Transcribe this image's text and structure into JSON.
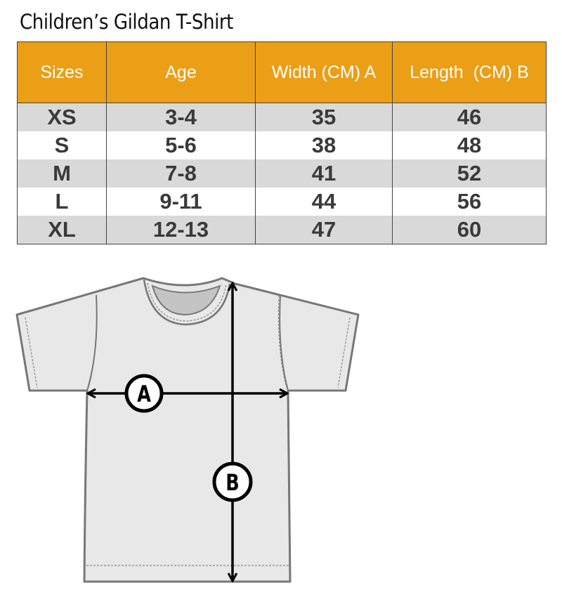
{
  "title": "Children’s Gildan T-Shirt",
  "table": {
    "headers": [
      "Sizes",
      "Age",
      "Width (CM) A",
      "Length  (CM) B"
    ],
    "rows": [
      [
        "XS",
        "3-4",
        "35",
        "46"
      ],
      [
        "S",
        "5-6",
        "38",
        "48"
      ],
      [
        "M",
        "7-8",
        "41",
        "52"
      ],
      [
        "L",
        "9-11",
        "44",
        "56"
      ],
      [
        "XL",
        "12-13",
        "47",
        "60"
      ]
    ]
  },
  "diagram": {
    "label_a": "A",
    "label_b": "B"
  },
  "colors": {
    "header": "#eb9f17",
    "stripe": "#d9d9d9",
    "shirt": "#e8e8e8"
  }
}
